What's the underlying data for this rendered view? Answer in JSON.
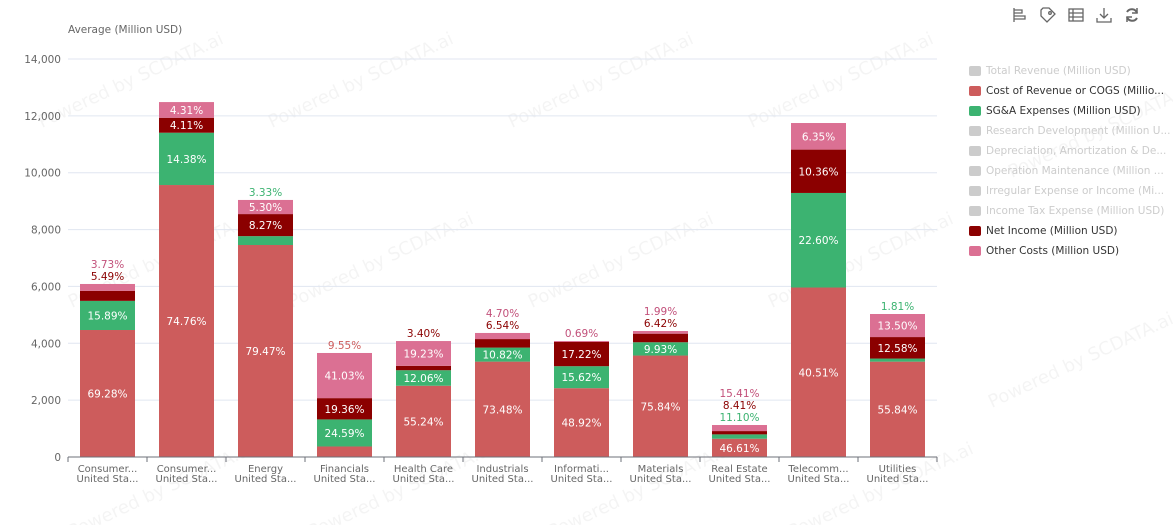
{
  "watermark": "Powered by SCDATA.ai",
  "toolbar": [
    "bar-layout-icon",
    "tag-icon",
    "data-view-icon",
    "download-icon",
    "refresh-icon"
  ],
  "legend": [
    {
      "label": "Total Revenue (Million USD)",
      "color": "#cccccc",
      "active": false
    },
    {
      "label": "Cost of Revenue or COGS (Millio...",
      "color": "#cd5c5c",
      "active": true
    },
    {
      "label": "SG&A Expenses (Million USD)",
      "color": "#3cb371",
      "active": true
    },
    {
      "label": "Research Development (Million U...",
      "color": "#cccccc",
      "active": false
    },
    {
      "label": "Depreciation, Amortization & De...",
      "color": "#cccccc",
      "active": false
    },
    {
      "label": "Operation Maintenance (Million ...",
      "color": "#cccccc",
      "active": false
    },
    {
      "label": "Irregular Expense or Income (Mi...",
      "color": "#cccccc",
      "active": false
    },
    {
      "label": "Income Tax Expense (Million USD)",
      "color": "#cccccc",
      "active": false
    },
    {
      "label": "Net Income (Million USD)",
      "color": "#8b0000",
      "active": true
    },
    {
      "label": "Other Costs (Million USD)",
      "color": "#db7093",
      "active": true
    }
  ],
  "chart_data": {
    "type": "bar",
    "stacked": true,
    "ylabel": "Average (Million USD)",
    "ylim": [
      0,
      14000
    ],
    "yticks": [
      "0",
      "2,000",
      "4,000",
      "6,000",
      "8,000",
      "10,000",
      "12,000",
      "14,000"
    ],
    "categories": [
      [
        "Consumer...",
        "United Sta..."
      ],
      [
        "Consumer...",
        "United Sta..."
      ],
      [
        "Energy",
        "United Sta..."
      ],
      [
        "Financials",
        "United Sta..."
      ],
      [
        "Health Care",
        "United Sta..."
      ],
      [
        "Industrials",
        "United Sta..."
      ],
      [
        "Informati...",
        "United Sta..."
      ],
      [
        "Materials",
        "United Sta..."
      ],
      [
        "Real Estate",
        "United Sta..."
      ],
      [
        "Telecomm...",
        "United Sta..."
      ],
      [
        "Utilities",
        "United Sta..."
      ]
    ],
    "series": [
      {
        "name": "Cost of Revenue or COGS (Million USD)",
        "color": "#cd5c5c",
        "values": [
          4467,
          9567,
          7457,
          370,
          2506,
          3355,
          2421,
          3569,
          643,
          5962,
          3354
        ],
        "labels": [
          "69.28%",
          "74.76%",
          "79.47%",
          "9.55%",
          "55.24%",
          "73.48%",
          "48.92%",
          "75.84%",
          "46.61%",
          "40.51%",
          "55.84%"
        ]
      },
      {
        "name": "SG&A Expenses (Million USD)",
        "color": "#3cb371",
        "values": [
          1025,
          1840,
          312,
          952,
          547,
          494,
          773,
          467,
          153,
          3326,
          109
        ],
        "labels": [
          "15.89%",
          "14.38%",
          "3.33%",
          "24.59%",
          "12.06%",
          "10.82%",
          "15.62%",
          "9.93%",
          "11.10%",
          "22.60%",
          "1.81%"
        ]
      },
      {
        "name": "Net Income (Million USD)",
        "color": "#8b0000",
        "values": [
          354,
          526,
          776,
          749,
          154,
          299,
          852,
          302,
          116,
          1525,
          756
        ],
        "labels": [
          "5.49%",
          "4.11%",
          "8.27%",
          "19.36%",
          "3.40%",
          "6.54%",
          "17.22%",
          "6.42%",
          "8.41%",
          "10.36%",
          "12.58%"
        ]
      },
      {
        "name": "Other Costs (Million USD)",
        "color": "#db7093",
        "values": [
          240,
          552,
          497,
          1588,
          872,
          215,
          34,
          94,
          213,
          935,
          811
        ],
        "labels": [
          "3.73%",
          "4.31%",
          "5.30%",
          "41.03%",
          "19.23%",
          "4.70%",
          "0.69%",
          "1.99%",
          "15.41%",
          "6.35%",
          "13.50%"
        ]
      }
    ],
    "grid": true,
    "legend_position": "right"
  }
}
